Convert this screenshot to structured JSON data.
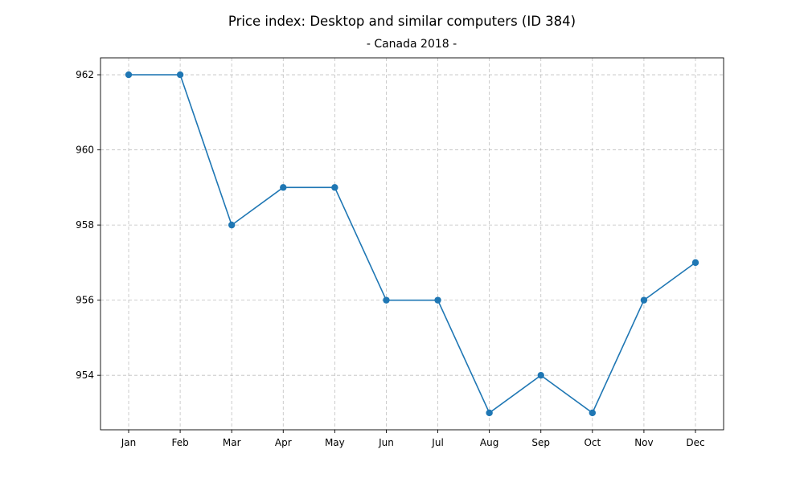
{
  "chart_data": {
    "type": "line",
    "title": "Price index: Desktop and similar computers (ID 384)",
    "subtitle": "- Canada 2018 -",
    "xlabel": "",
    "ylabel": "",
    "categories": [
      "Jan",
      "Feb",
      "Mar",
      "Apr",
      "May",
      "Jun",
      "Jul",
      "Aug",
      "Sep",
      "Oct",
      "Nov",
      "Dec"
    ],
    "series": [
      {
        "values": [
          962,
          962,
          958,
          959,
          959,
          956,
          956,
          953,
          954,
          953,
          956,
          957
        ],
        "color": "#1f77b4",
        "marker": "circle"
      }
    ],
    "yticks": [
      954,
      956,
      958,
      960,
      962
    ],
    "ylim": [
      952.55,
      962.45
    ],
    "grid": true,
    "legend": "none"
  }
}
